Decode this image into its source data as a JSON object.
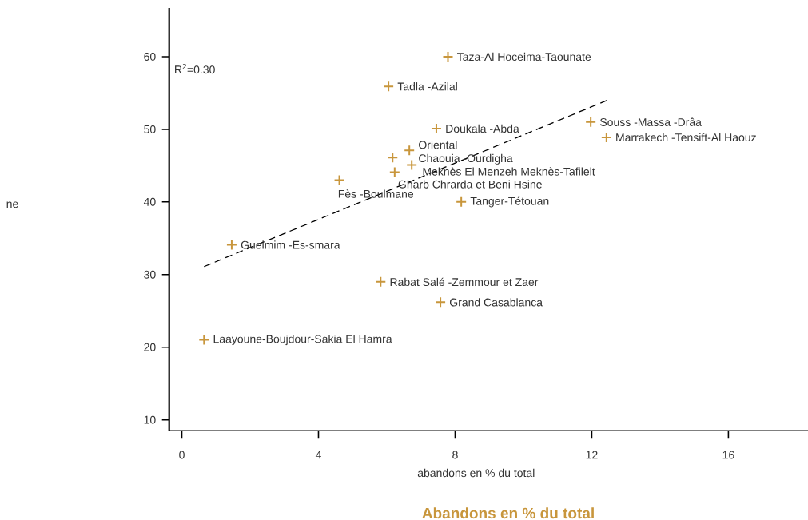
{
  "chart_data": {
    "type": "scatter",
    "title": "Abandons en % du total",
    "xlabel": "abandons en % du total",
    "xlim": [
      -0.37,
      18.33
    ],
    "ylim": [
      8.5,
      66.7
    ],
    "xticks": [
      0,
      4,
      8,
      12,
      16
    ],
    "yticks": [
      10,
      20,
      30,
      40,
      50,
      60
    ],
    "series": [
      {
        "color": "#c8963c",
        "marker": "cross",
        "x": [
          7.79,
          6.05,
          7.45,
          11.97,
          12.43,
          6.66,
          6.17,
          6.73,
          6.23,
          4.61,
          8.18,
          1.46,
          5.82,
          7.57,
          0.65
        ],
        "values": [
          60.0,
          55.9,
          50.1,
          51.0,
          48.9,
          47.1,
          46.1,
          45.1,
          44.1,
          43.0,
          40.0,
          34.1,
          29.0,
          26.2,
          21.0
        ]
      },
      {
        "type": "line",
        "color": "#000000",
        "line_style": "dashed",
        "x": [
          0.65,
          12.46
        ],
        "values": [
          31.1,
          54.0
        ]
      }
    ],
    "annotations": [
      "R$^{2}$=0.30",
      {
        "text": "Taza-Al Hoceima-Taounate",
        "x": 7.79,
        "y": 60.0
      },
      {
        "text": "Tadla -Azilal",
        "x": 6.05,
        "y": 55.9
      },
      {
        "text": "Doukala -Abda",
        "x": 7.45,
        "y": 50.1
      },
      {
        "text": "Souss -Massa -Drâa",
        "x": 11.97,
        "y": 51.0
      },
      {
        "text": "Marrakech -Tensift-Al Haouz",
        "x": 12.43,
        "y": 48.9
      },
      {
        "text": "Oriental",
        "x": 6.66,
        "y": 47.1
      },
      {
        "text": "Chaouia -Ourdigha",
        "x": 6.17,
        "y": 46.1
      },
      {
        "text": "Meknès El Menzeh Meknès-Tafilelt",
        "x": 6.73,
        "y": 45.1
      },
      {
        "text": "Gharb Chrarda et Beni Hsine",
        "x": 6.23,
        "y": 44.1
      },
      {
        "text": "Fès -Boulmane",
        "x": 4.61,
        "y": 43.0
      },
      {
        "text": "Tanger-Tétouan",
        "x": 8.18,
        "y": 40.0
      },
      {
        "text": "Guelmim -Es-smara",
        "x": 1.46,
        "y": 34.1
      },
      {
        "text": "Rabat Salé -Zemmour et Zaer",
        "x": 5.82,
        "y": 29.0
      },
      {
        "text": "Grand Casablanca",
        "x": 7.57,
        "y": 26.2
      },
      {
        "text": "Laayoune-Boujdour-Sakia El Hamra",
        "x": 0.65,
        "y": 21.0
      },
      "ne"
    ]
  }
}
